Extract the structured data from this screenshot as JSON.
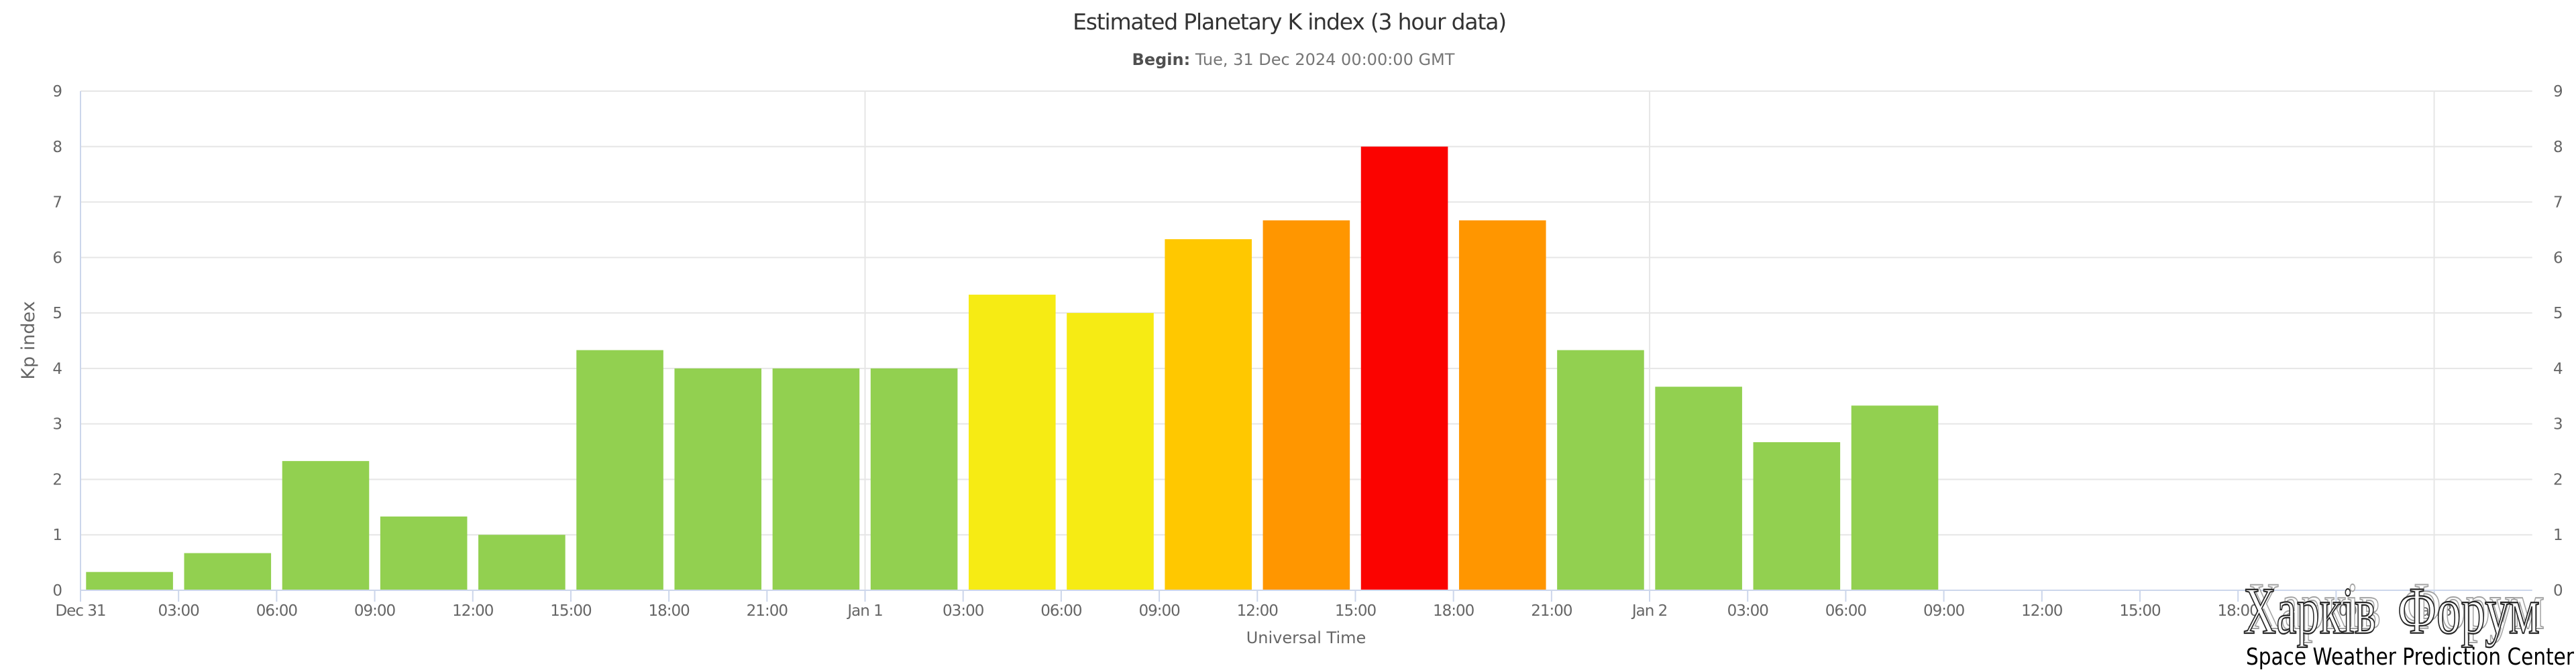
{
  "chart_data": {
    "type": "bar",
    "title": "Estimated Planetary K index (3 hour data)",
    "subtitle": {
      "label": "Begin:",
      "value": " Tue, 31 Dec 2024 00:00:00 GMT"
    },
    "xlabel": "Universal Time",
    "ylabel": "Kp index",
    "ylim": [
      0,
      9
    ],
    "y_ticks": [
      "0",
      "1",
      "2",
      "3",
      "4",
      "5",
      "6",
      "7",
      "8",
      "9"
    ],
    "y_axis_mirrored_right": true,
    "grid": {
      "horizontal": true,
      "vertical_day_boundaries": true
    },
    "legend": "none",
    "x_tick_labels": [
      "Dec 31",
      "03:00",
      "06:00",
      "09:00",
      "12:00",
      "15:00",
      "18:00",
      "21:00",
      "Jan 1",
      "03:00",
      "06:00",
      "09:00",
      "12:00",
      "15:00",
      "18:00",
      "21:00",
      "Jan 2",
      "03:00",
      "06:00",
      "09:00",
      "12:00",
      "15:00",
      "18:00",
      "21:00",
      "Jan 3"
    ],
    "slots_total": 25,
    "day_boundary_slots": [
      8,
      16,
      24
    ],
    "bars": [
      {
        "start": "Dec 31 00:00",
        "kp": 0.33,
        "color": "green"
      },
      {
        "start": "Dec 31 03:00",
        "kp": 0.67,
        "color": "green"
      },
      {
        "start": "Dec 31 06:00",
        "kp": 2.33,
        "color": "green"
      },
      {
        "start": "Dec 31 09:00",
        "kp": 1.33,
        "color": "green"
      },
      {
        "start": "Dec 31 12:00",
        "kp": 1.0,
        "color": "green"
      },
      {
        "start": "Dec 31 15:00",
        "kp": 4.33,
        "color": "green"
      },
      {
        "start": "Dec 31 18:00",
        "kp": 4.0,
        "color": "green"
      },
      {
        "start": "Dec 31 21:00",
        "kp": 4.0,
        "color": "green"
      },
      {
        "start": "Jan 1 00:00",
        "kp": 4.0,
        "color": "green"
      },
      {
        "start": "Jan 1 03:00",
        "kp": 5.33,
        "color": "yellow"
      },
      {
        "start": "Jan 1 06:00",
        "kp": 5.0,
        "color": "yellow"
      },
      {
        "start": "Jan 1 09:00",
        "kp": 6.33,
        "color": "amber"
      },
      {
        "start": "Jan 1 12:00",
        "kp": 6.67,
        "color": "orange"
      },
      {
        "start": "Jan 1 15:00",
        "kp": 8.0,
        "color": "red"
      },
      {
        "start": "Jan 1 18:00",
        "kp": 6.67,
        "color": "orange"
      },
      {
        "start": "Jan 1 21:00",
        "kp": 4.33,
        "color": "green"
      },
      {
        "start": "Jan 2 00:00",
        "kp": 3.67,
        "color": "green"
      },
      {
        "start": "Jan 2 03:00",
        "kp": 2.67,
        "color": "green"
      },
      {
        "start": "Jan 2 06:00",
        "kp": 3.33,
        "color": "green"
      }
    ],
    "palette": {
      "green": "#92D050",
      "yellow": "#F6EB14",
      "amber": "#FFC800",
      "orange": "#FF9600",
      "red": "#FB0300"
    },
    "style_colors": {
      "axis_line": "#CCD6EB",
      "grid_line": "#E6E6E6",
      "tick_label": "#666666",
      "title": "#333333"
    }
  },
  "watermark": {
    "text": "Харків Форум",
    "credit": "Space Weather Prediction Center"
  }
}
